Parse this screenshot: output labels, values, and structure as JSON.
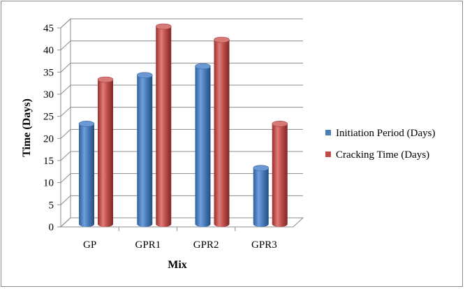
{
  "chart_data": {
    "type": "bar",
    "title": "",
    "xlabel": "Mix",
    "ylabel": "Time (Days)",
    "categories": [
      "GP",
      "GPR1",
      "GPR2",
      "GPR3"
    ],
    "series": [
      {
        "name": "Initiation Period (Days)",
        "values": [
          23,
          34,
          36,
          13
        ],
        "color": "#4a7ebb"
      },
      {
        "name": "Cracking Time (Days)",
        "values": [
          33,
          45,
          42,
          23
        ],
        "color": "#be4b48"
      }
    ],
    "ylim": [
      0,
      45
    ],
    "yticks": [
      0,
      5,
      10,
      15,
      20,
      25,
      30,
      35,
      40,
      45
    ],
    "grid": true,
    "legend_position": "right",
    "style": "3d-cylinder"
  }
}
